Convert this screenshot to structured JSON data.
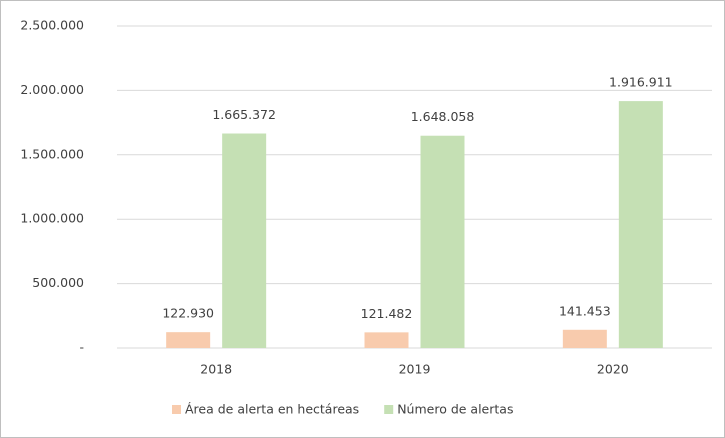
{
  "chart_data": {
    "type": "bar",
    "categories": [
      "2018",
      "2019",
      "2020"
    ],
    "series": [
      {
        "name": "Área de alerta en hectáreas",
        "color": "#f8cbad",
        "values": [
          122930,
          121482,
          141453
        ],
        "value_labels": [
          "122.930",
          "121.482",
          "141.453"
        ]
      },
      {
        "name": "Número de alertas",
        "color": "#c5e0b4",
        "values": [
          1665372,
          1648058,
          1916911
        ],
        "value_labels": [
          "1.665.372",
          "1.648.058",
          "1.916.911"
        ]
      }
    ],
    "ylim": [
      0,
      2500000
    ],
    "yticks": [
      {
        "value": 0,
        "label": "-"
      },
      {
        "value": 500000,
        "label": "500.000"
      },
      {
        "value": 1000000,
        "label": "1.000.000"
      },
      {
        "value": 1500000,
        "label": "1.500.000"
      },
      {
        "value": 2000000,
        "label": "2.000.000"
      },
      {
        "value": 2500000,
        "label": "2.500.000"
      }
    ],
    "grid": true,
    "legend": "bottom"
  }
}
